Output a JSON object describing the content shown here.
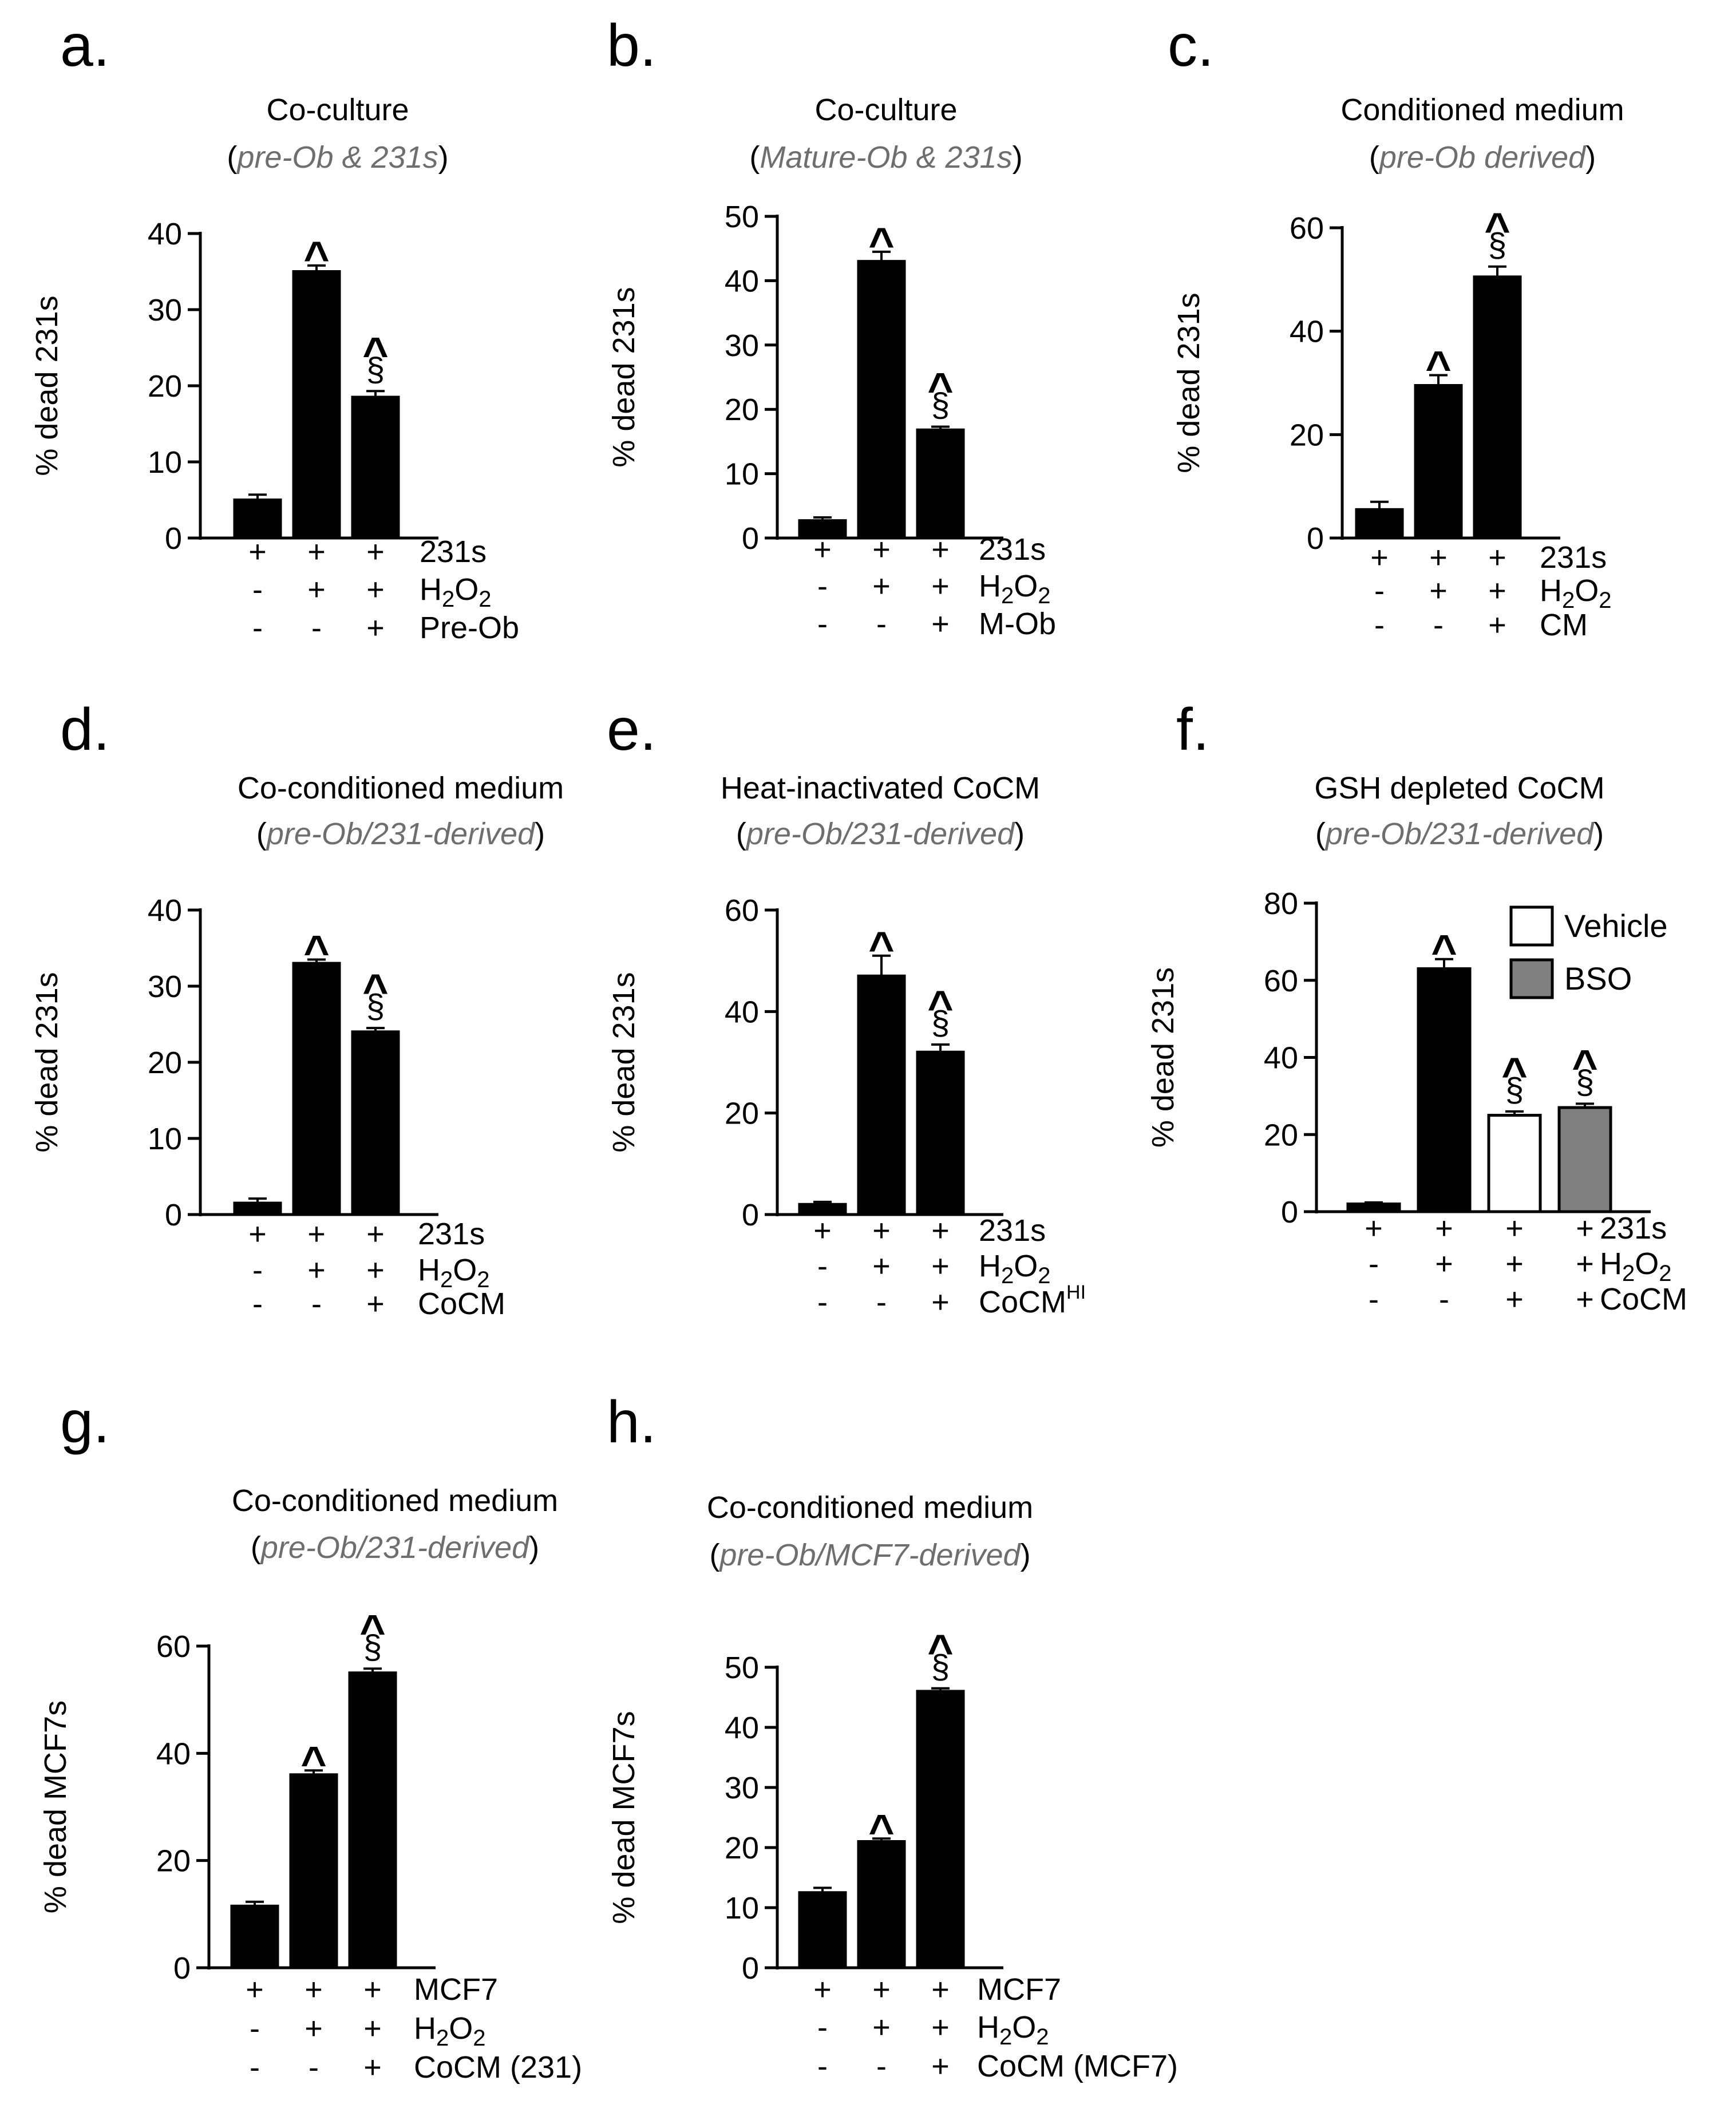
{
  "chart_data": [
    {
      "type": "bar",
      "panel_label": "a.",
      "title": "Co-culture",
      "subtitle": "pre-Ob & 231s",
      "subtitle_open": "(",
      "subtitle_close": ")",
      "ylabel": "% dead 231s",
      "ylim": [
        0,
        40
      ],
      "yticks": [
        "0",
        "10",
        "20",
        "30",
        "40"
      ],
      "values": [
        5,
        35,
        18.5
      ],
      "errors": [
        0.7,
        0.8,
        0.8
      ],
      "fills": [
        "black",
        "black",
        "black"
      ],
      "markers": [
        "",
        "^",
        "^§"
      ],
      "treatments": [
        {
          "label": "231s",
          "signs": [
            "+",
            "+",
            "+"
          ]
        },
        {
          "label": "H2O2",
          "formula": [
            "H",
            "2",
            "O",
            "2"
          ],
          "signs": [
            "-",
            "+",
            "+"
          ]
        },
        {
          "label": "Pre-Ob",
          "signs": [
            "-",
            "-",
            "+"
          ]
        }
      ]
    },
    {
      "type": "bar",
      "panel_label": "b.",
      "title": "Co-culture",
      "subtitle": "Mature-Ob & 231s",
      "subtitle_open": "(",
      "subtitle_close": ")",
      "ylabel": "% dead 231s",
      "ylim": [
        0,
        50
      ],
      "yticks": [
        "0",
        "10",
        "20",
        "30",
        "40",
        "50"
      ],
      "values": [
        2.7,
        43,
        16.8
      ],
      "errors": [
        0.5,
        1.5,
        0.5
      ],
      "fills": [
        "black",
        "black",
        "black"
      ],
      "markers": [
        "",
        "^",
        "^§"
      ],
      "treatments": [
        {
          "label": "231s",
          "signs": [
            "+",
            "+",
            "+"
          ]
        },
        {
          "label": "H2O2",
          "formula": [
            "H",
            "2",
            "O",
            "2"
          ],
          "signs": [
            "-",
            "+",
            "+"
          ]
        },
        {
          "label": "M-Ob",
          "signs": [
            "-",
            "-",
            "+"
          ]
        }
      ]
    },
    {
      "type": "bar",
      "panel_label": "c.",
      "title": "Conditioned medium",
      "subtitle": "pre-Ob derived",
      "subtitle_open": "(",
      "subtitle_close": ")",
      "ylabel": "% dead 231s",
      "ylim": [
        0,
        60
      ],
      "yticks": [
        "0",
        "20",
        "40",
        "60"
      ],
      "values": [
        5.5,
        29.5,
        50.5
      ],
      "errors": [
        1.5,
        2,
        2
      ],
      "fills": [
        "black",
        "black",
        "black"
      ],
      "markers": [
        "",
        "^",
        "^§"
      ],
      "treatments": [
        {
          "label": "231s",
          "signs": [
            "+",
            "+",
            "+"
          ]
        },
        {
          "label": "H2O2",
          "formula": [
            "H",
            "2",
            "O",
            "2"
          ],
          "signs": [
            "-",
            "+",
            "+"
          ]
        },
        {
          "label": "CM",
          "signs": [
            "-",
            "-",
            "+"
          ]
        }
      ]
    },
    {
      "type": "bar",
      "panel_label": "d.",
      "title": "Co-conditioned medium",
      "subtitle": "pre-Ob/231-derived",
      "subtitle_open": "(",
      "subtitle_close": ")",
      "ylabel": "% dead 231s",
      "ylim": [
        0,
        40
      ],
      "yticks": [
        "0",
        "10",
        "20",
        "30",
        "40"
      ],
      "values": [
        1.5,
        33,
        24
      ],
      "errors": [
        0.6,
        0.5,
        0.5
      ],
      "fills": [
        "black",
        "black",
        "black"
      ],
      "markers": [
        "",
        "^",
        "^§"
      ],
      "treatments": [
        {
          "label": "231s",
          "signs": [
            "+",
            "+",
            "+"
          ]
        },
        {
          "label": "H2O2",
          "formula": [
            "H",
            "2",
            "O",
            "2"
          ],
          "signs": [
            "-",
            "+",
            "+"
          ]
        },
        {
          "label": "CoCM",
          "signs": [
            "-",
            "-",
            "+"
          ]
        }
      ]
    },
    {
      "type": "bar",
      "panel_label": "e.",
      "title": "Heat-inactivated CoCM",
      "subtitle": "pre-Ob/231-derived",
      "subtitle_open": "(",
      "subtitle_close": ")",
      "ylabel": "% dead 231s",
      "ylim": [
        0,
        60
      ],
      "yticks": [
        "0",
        "20",
        "40",
        "60"
      ],
      "values": [
        2,
        47,
        32
      ],
      "errors": [
        0.5,
        4,
        1.5
      ],
      "fills": [
        "black",
        "black",
        "black"
      ],
      "markers": [
        "",
        "^",
        "^§"
      ],
      "treatments": [
        {
          "label": "231s",
          "signs": [
            "+",
            "+",
            "+"
          ]
        },
        {
          "label": "H2O2",
          "formula": [
            "H",
            "2",
            "O",
            "2"
          ],
          "signs": [
            "-",
            "+",
            "+"
          ]
        },
        {
          "label": "CoCMHI",
          "base": "CoCM",
          "sup": "HI",
          "signs": [
            "-",
            "-",
            "+"
          ]
        }
      ]
    },
    {
      "type": "bar",
      "panel_label": "f.",
      "title": "GSH depleted CoCM",
      "subtitle": "pre-Ob/231-derived",
      "subtitle_open": "(",
      "subtitle_close": ")",
      "ylabel": "% dead 231s",
      "ylim": [
        0,
        80
      ],
      "yticks": [
        "0",
        "20",
        "40",
        "60",
        "80"
      ],
      "values": [
        2,
        63,
        25,
        27
      ],
      "errors": [
        0.4,
        2.5,
        1,
        1
      ],
      "fills": [
        "black",
        "black",
        "white",
        "grey"
      ],
      "markers": [
        "",
        "^",
        "^§",
        "^§"
      ],
      "legend": [
        {
          "label": "Vehicle",
          "fill": "white"
        },
        {
          "label": "BSO",
          "fill": "grey"
        }
      ],
      "treatments": [
        {
          "label": "231s",
          "signs": [
            "+",
            "+",
            "+",
            "+"
          ]
        },
        {
          "label": "H2O2",
          "formula": [
            "H",
            "2",
            "O",
            "2"
          ],
          "signs": [
            "-",
            "+",
            "+",
            "+"
          ]
        },
        {
          "label": "CoCM",
          "signs": [
            "-",
            "-",
            "+",
            "+"
          ]
        }
      ]
    },
    {
      "type": "bar",
      "panel_label": "g.",
      "title": "Co-conditioned medium",
      "subtitle": "pre-Ob/231-derived",
      "subtitle_open": "(",
      "subtitle_close": ")",
      "ylabel": "% dead MCF7s",
      "ylim": [
        0,
        60
      ],
      "yticks": [
        "0",
        "20",
        "40",
        "60"
      ],
      "values": [
        11.5,
        36,
        55
      ],
      "errors": [
        0.8,
        0.8,
        0.8
      ],
      "fills": [
        "black",
        "black",
        "black"
      ],
      "markers": [
        "",
        "^",
        "^§"
      ],
      "treatments": [
        {
          "label": "MCF7",
          "signs": [
            "+",
            "+",
            "+"
          ]
        },
        {
          "label": "H2O2",
          "formula": [
            "H",
            "2",
            "O",
            "2"
          ],
          "signs": [
            "-",
            "+",
            "+"
          ]
        },
        {
          "label": "CoCM (231)",
          "signs": [
            "-",
            "-",
            "+"
          ]
        }
      ]
    },
    {
      "type": "bar",
      "panel_label": "h.",
      "title": "Co-conditioned medium",
      "subtitle": "pre-Ob/MCF7-derived",
      "subtitle_open": "(",
      "subtitle_close": ")",
      "ylabel": "% dead MCF7s",
      "ylim": [
        0,
        50
      ],
      "yticks": [
        "0",
        "10",
        "20",
        "30",
        "40",
        "50"
      ],
      "values": [
        12.5,
        21,
        46
      ],
      "errors": [
        0.8,
        0.5,
        0.5
      ],
      "fills": [
        "black",
        "black",
        "black"
      ],
      "markers": [
        "",
        "^",
        "^§"
      ],
      "treatments": [
        {
          "label": "MCF7",
          "signs": [
            "+",
            "+",
            "+"
          ]
        },
        {
          "label": "H2O2",
          "formula": [
            "H",
            "2",
            "O",
            "2"
          ],
          "signs": [
            "-",
            "+",
            "+"
          ]
        },
        {
          "label": "CoCM (MCF7)",
          "signs": [
            "-",
            "-",
            "+"
          ]
        }
      ]
    }
  ],
  "colors": {
    "bar_black": "#000000",
    "bar_white": "#ffffff",
    "bar_grey": "#808080",
    "subtitle_grey": "#6e6e6e",
    "axis": "#000000"
  }
}
